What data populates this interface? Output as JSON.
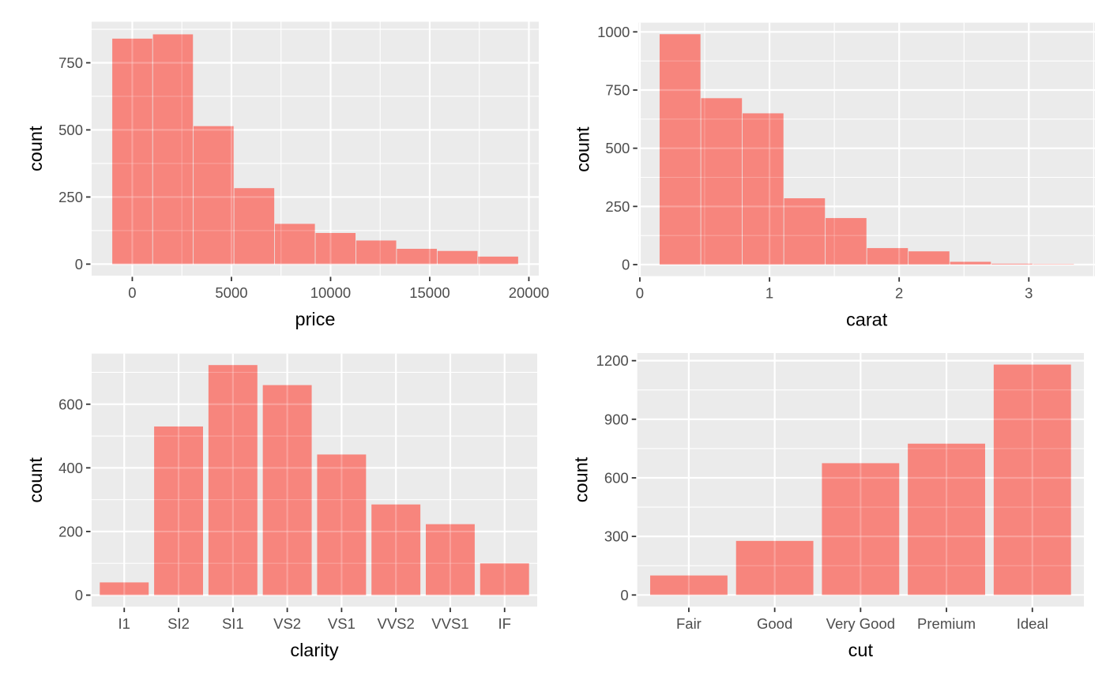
{
  "figure": {
    "description": "2x2 grid of ggplot-style charts of a diamonds sample",
    "background": "#FFFFFF"
  },
  "colors": {
    "bar_fill": "#F8766D",
    "panel_bg": "#EBEBEB",
    "grid": "#FFFFFF",
    "axis_text": "#4D4D4D",
    "axis_title": "#000000",
    "tick_mark": "#333333"
  },
  "chart_data": [
    {
      "name": "price-histogram",
      "type": "bar",
      "subtype": "histogram",
      "xlabel": "price",
      "ylabel": "count",
      "bin_start": -1025,
      "bin_width": 2050,
      "values": [
        840,
        856,
        514,
        283,
        150,
        116,
        88,
        57,
        49,
        28
      ],
      "x_ticks": [
        0,
        5000,
        10000,
        15000,
        20000
      ],
      "x_tick_labels": [
        "0",
        "5000",
        "10000",
        "15000",
        "20000"
      ],
      "x_minor": [
        2500,
        7500,
        12500,
        17500
      ],
      "x_range": [
        -2050,
        20500
      ],
      "y_ticks": [
        0,
        250,
        500,
        750
      ],
      "y_tick_labels": [
        "0",
        "250",
        "500",
        "750"
      ],
      "y_minor": [
        125,
        375,
        625,
        875
      ],
      "y_range": [
        -43,
        903
      ],
      "grid": true,
      "legend": false
    },
    {
      "name": "carat-histogram",
      "type": "bar",
      "subtype": "histogram",
      "xlabel": "carat",
      "ylabel": "count",
      "bin_start": 0.15,
      "bin_width": 0.32,
      "values": [
        990,
        715,
        650,
        285,
        200,
        71,
        57,
        12,
        4,
        2
      ],
      "x_ticks": [
        0,
        1,
        2,
        3
      ],
      "x_tick_labels": [
        "0",
        "1",
        "2",
        "3"
      ],
      "x_minor": [
        0.5,
        1.5,
        2.5,
        3.5
      ],
      "x_range": [
        -0.01,
        3.51
      ],
      "y_ticks": [
        0,
        250,
        500,
        750,
        1000
      ],
      "y_tick_labels": [
        "0",
        "250",
        "500",
        "750",
        "1000"
      ],
      "y_minor": [
        125,
        375,
        625,
        875
      ],
      "y_range": [
        -49.5,
        1039.5
      ],
      "grid": true,
      "legend": false
    },
    {
      "name": "clarity-barchart",
      "type": "bar",
      "subtype": "categorical",
      "xlabel": "clarity",
      "ylabel": "count",
      "categories": [
        "I1",
        "SI2",
        "SI1",
        "VS2",
        "VS1",
        "VVS2",
        "VVS1",
        "IF"
      ],
      "values": [
        40,
        530,
        723,
        660,
        442,
        285,
        223,
        100
      ],
      "y_ticks": [
        0,
        200,
        400,
        600
      ],
      "y_tick_labels": [
        "0",
        "200",
        "400",
        "600"
      ],
      "y_minor": [
        100,
        300,
        500,
        700
      ],
      "y_range": [
        -36,
        759
      ],
      "grid": true,
      "legend": false
    },
    {
      "name": "cut-barchart",
      "type": "bar",
      "subtype": "categorical",
      "xlabel": "cut",
      "ylabel": "count",
      "categories": [
        "Fair",
        "Good",
        "Very Good",
        "Premium",
        "Ideal"
      ],
      "values": [
        100,
        277,
        675,
        775,
        1180
      ],
      "y_ticks": [
        0,
        300,
        600,
        900,
        1200
      ],
      "y_tick_labels": [
        "0",
        "300",
        "600",
        "900",
        "1200"
      ],
      "y_minor": [
        150,
        450,
        750,
        1050
      ],
      "y_range": [
        -59,
        1239
      ],
      "grid": true,
      "legend": false
    }
  ]
}
